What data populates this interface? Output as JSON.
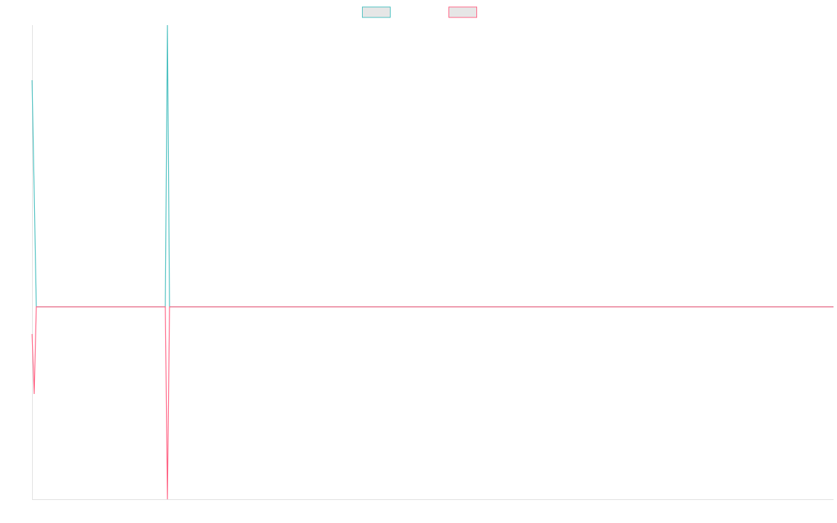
{
  "chart_data": {
    "type": "line",
    "x": [
      0,
      1,
      2,
      63,
      64,
      65,
      379
    ],
    "xlim": [
      0,
      379
    ],
    "ylim": [
      -276,
      404
    ],
    "series": [
      {
        "color": "#4bc0c0",
        "values": [
          325,
          163,
          0,
          0,
          404,
          0,
          0
        ]
      },
      {
        "color": "#ff6384",
        "values": [
          -39,
          -125,
          0,
          0,
          -276,
          0,
          0
        ]
      }
    ],
    "legend": "top"
  }
}
